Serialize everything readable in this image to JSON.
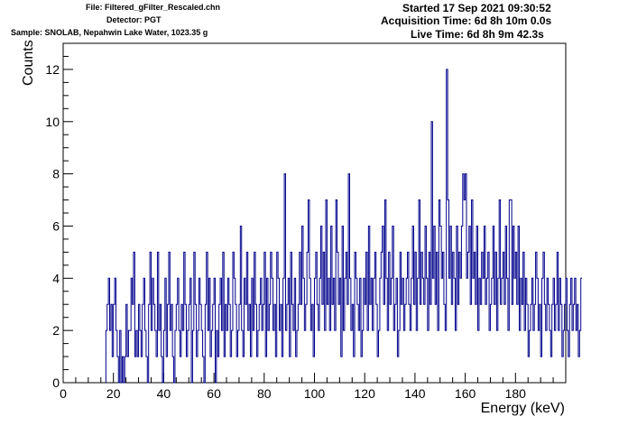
{
  "header_left": {
    "file": "File: Filtered_gFilter_Rescaled.chn",
    "detector": "Detector: PGT",
    "sample": "Sample: SNOLAB, Nepahwin Lake Water, 1023.35 g"
  },
  "header_right": {
    "started": "Started 17 Sep 2021 09:30:52",
    "acquisition": "Acquisition Time: 6d 8h 10m 0.0s",
    "live": "Live Time: 6d 8h 9m 42.3s"
  },
  "colors": {
    "series": "#00008b",
    "axis": "#000000"
  },
  "chart_data": {
    "type": "line",
    "style": "step histogram",
    "xlabel": "Energy (keV)",
    "ylabel": "Counts",
    "xlim": [
      0,
      200
    ],
    "ylim": [
      0,
      13
    ],
    "xticks": [
      "0",
      "20",
      "40",
      "60",
      "80",
      "100",
      "120",
      "140",
      "160",
      "180"
    ],
    "yticks": [
      "0",
      "2",
      "4",
      "6",
      "8",
      "10",
      "12"
    ],
    "grid": false,
    "legend": "none",
    "bin_width_kev": 0.5,
    "x_start": 17.0,
    "values": [
      2,
      3,
      4,
      2,
      3,
      1,
      3,
      4,
      2,
      1,
      0,
      2,
      0,
      1,
      0,
      1,
      3,
      1,
      2,
      2,
      4,
      3,
      5,
      1,
      2,
      1,
      3,
      2,
      1,
      3,
      4,
      2,
      1,
      0,
      3,
      5,
      2,
      4,
      3,
      2,
      1,
      5,
      2,
      3,
      1,
      0,
      2,
      4,
      1,
      3,
      5,
      2,
      3,
      1,
      0,
      2,
      3,
      4,
      2,
      1,
      3,
      2,
      5,
      3,
      1,
      2,
      3,
      4,
      0,
      2,
      5,
      3,
      1,
      2,
      4,
      3,
      2,
      1,
      0,
      3,
      5,
      2,
      4,
      1,
      2,
      3,
      4,
      0,
      2,
      1,
      3,
      4,
      2,
      5,
      1,
      3,
      2,
      4,
      3,
      1,
      2,
      5,
      4,
      3,
      1,
      2,
      3,
      6,
      2,
      1,
      4,
      3,
      5,
      2,
      3,
      1,
      4,
      2,
      5,
      3,
      1,
      2,
      3,
      4,
      2,
      3,
      5,
      1,
      4,
      2,
      3,
      5,
      4,
      2,
      3,
      1,
      5,
      4,
      2,
      3,
      1,
      4,
      8,
      2,
      3,
      4,
      1,
      5,
      3,
      2,
      4,
      1,
      2,
      3,
      5,
      3,
      6,
      4,
      2,
      3,
      5,
      7,
      4,
      2,
      3,
      1,
      4,
      5,
      3,
      2,
      4,
      6,
      3,
      5,
      2,
      7,
      3,
      4,
      2,
      6,
      3,
      4,
      2,
      7,
      5,
      3,
      4,
      1,
      6,
      2,
      4,
      5,
      3,
      8,
      4,
      2,
      3,
      1,
      5,
      4,
      3,
      2,
      4,
      1,
      2,
      4,
      3,
      5,
      2,
      6,
      3,
      4,
      2,
      4,
      5,
      3,
      1,
      2,
      4,
      5,
      6,
      3,
      7,
      4,
      2,
      5,
      3,
      4,
      6,
      2,
      3,
      4,
      1,
      2,
      5,
      3,
      4,
      2,
      3,
      4,
      5,
      3,
      2,
      4,
      6,
      3,
      5,
      2,
      4,
      7,
      3,
      5,
      4,
      3,
      6,
      4,
      2,
      5,
      3,
      10,
      4,
      6,
      3,
      5,
      2,
      7,
      6,
      4,
      5,
      3,
      2,
      12,
      7,
      4,
      6,
      3,
      5,
      4,
      2,
      6,
      3,
      5,
      4,
      6,
      8,
      7,
      8,
      4,
      5,
      6,
      3,
      7,
      4,
      5,
      3,
      6,
      2,
      4,
      3,
      5,
      4,
      6,
      3,
      4,
      5,
      2,
      3,
      4,
      6,
      3,
      5,
      2,
      4,
      7,
      3,
      4,
      5,
      3,
      6,
      4,
      2,
      7,
      7,
      3,
      6,
      4,
      5,
      3,
      6,
      2,
      4,
      3,
      5,
      2,
      4,
      3,
      1,
      2,
      3,
      4,
      2,
      3,
      5,
      4,
      2,
      3,
      1,
      4,
      5,
      3,
      2,
      4,
      3,
      2,
      1,
      3,
      4,
      2,
      3,
      5,
      2,
      4,
      3,
      1,
      2,
      3,
      4,
      2,
      1,
      3,
      4,
      2,
      3,
      4,
      2,
      3,
      1,
      2,
      4
    ]
  }
}
